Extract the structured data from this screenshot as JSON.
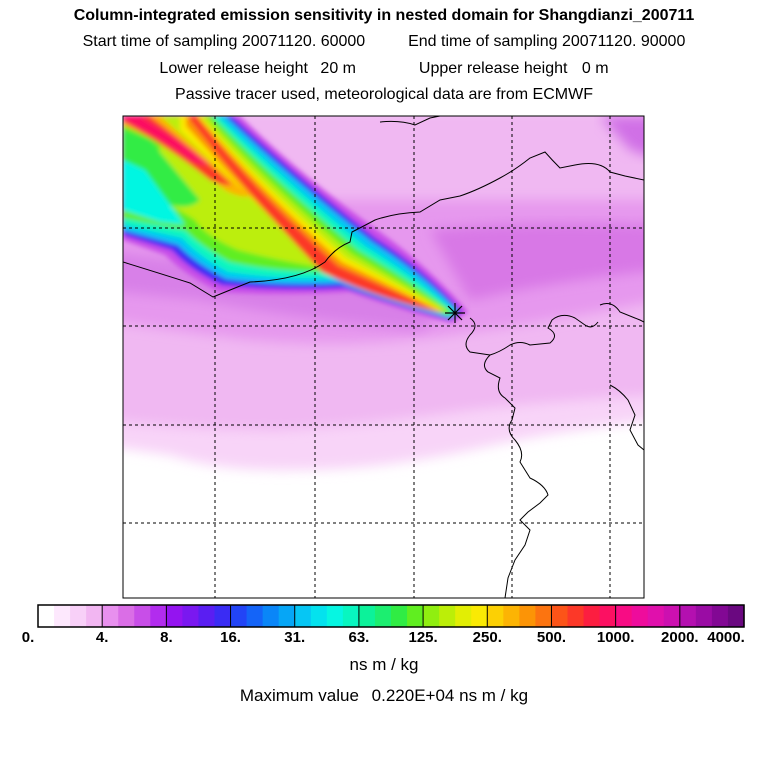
{
  "header": {
    "title": "Column-integrated emission sensitivity in nested domain for Shangdianzi_200711",
    "start_label": "Start time of sampling",
    "start_value": "20071120. 60000",
    "end_label": "End time of sampling",
    "end_value": "20071120. 90000",
    "lower_label": "Lower release height",
    "lower_value": "20 m",
    "upper_label": "Upper release height",
    "upper_value": "0 m",
    "tracer_note": "Passive tracer used, meteorological data are from ECMWF"
  },
  "colorbar": {
    "tick_labels": [
      "0.",
      "4.",
      "8.",
      "16.",
      "31.",
      "63.",
      "125.",
      "250.",
      "500.",
      "1000.",
      "2000.",
      "4000."
    ],
    "colors": [
      "#ffffff",
      "#fde8fd",
      "#f8d0f8",
      "#f2b6f2",
      "#e890ee",
      "#da6ee6",
      "#c84ee8",
      "#b22cee",
      "#9414f0",
      "#7a18f0",
      "#5a1ef2",
      "#3a2cf4",
      "#2244f6",
      "#1464f8",
      "#0a86f8",
      "#06a6f6",
      "#06c6f4",
      "#04e2ee",
      "#06f6e2",
      "#08f6c0",
      "#0cf29a",
      "#1cee70",
      "#30ec44",
      "#60ee20",
      "#90ee10",
      "#bcee08",
      "#e2ee04",
      "#faea04",
      "#fcd004",
      "#fcb404",
      "#fc9406",
      "#fc7410",
      "#fc5418",
      "#fc3828",
      "#fc1e40",
      "#fc1062",
      "#f80c84",
      "#ee0c9c",
      "#e010ac",
      "#cc10b0",
      "#b410b0",
      "#9a0ca4",
      "#820894",
      "#6a0880"
    ],
    "unit": "ns m / kg"
  },
  "map": {
    "receptor": "Shangdianzi",
    "receptor_marker": "star-plus",
    "colors": {
      "frame": "#000000",
      "coast": "#000000",
      "grid": "#000000"
    }
  },
  "summary": {
    "max_label": "Maximum value",
    "max_value": "0.220E+04",
    "max_unit": "ns m / kg"
  }
}
